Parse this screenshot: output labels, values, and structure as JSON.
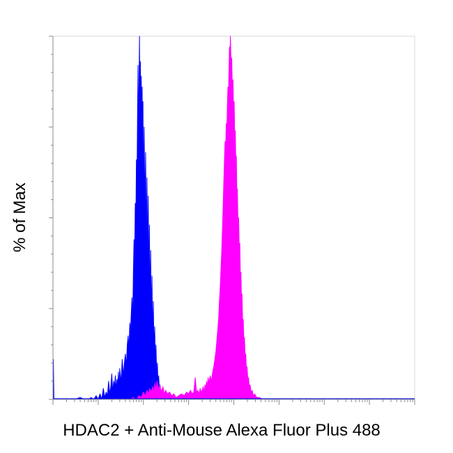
{
  "chart_data": {
    "type": "area",
    "title": "",
    "xlabel": "HDAC2 + Anti-Mouse Alexa Fluor Plus 488",
    "ylabel": "% of Max",
    "xscale": "log",
    "xlim": [
      1,
      100000000
    ],
    "ylim": [
      0,
      100
    ],
    "grid": false,
    "legend": "none",
    "series": [
      {
        "color": "#0000ff",
        "x": [
          1,
          1.02,
          1.05,
          1.1,
          1.3,
          1.6,
          2.2,
          3,
          4,
          5,
          6,
          7,
          8,
          9,
          10,
          11,
          12,
          13,
          14,
          15,
          16,
          17,
          18,
          19,
          20,
          21,
          22,
          23,
          24,
          25,
          26,
          27,
          28,
          29,
          30,
          32,
          34,
          36,
          38,
          40,
          42,
          44,
          46,
          48,
          50,
          52,
          54,
          56,
          58,
          60,
          62,
          64,
          66,
          68,
          70,
          72,
          74,
          76,
          78,
          80,
          82,
          84,
          86,
          88,
          90,
          92,
          94,
          96,
          98,
          100,
          104,
          108,
          112,
          116,
          120,
          124,
          128,
          132,
          136,
          140,
          145,
          150,
          155,
          160,
          166,
          172,
          178,
          184,
          190,
          197,
          204,
          211,
          218,
          226,
          234,
          242,
          250,
          260,
          270,
          280,
          290,
          300,
          315,
          330,
          345,
          360,
          380,
          400,
          420,
          440,
          470,
          500,
          540,
          580,
          640,
          720,
          800,
          1000,
          1500,
          3000,
          10000,
          100000,
          100000000
        ],
        "values": [
          0,
          11,
          0,
          0,
          0,
          0,
          0,
          0,
          0.5,
          0,
          0,
          0.5,
          0,
          1,
          0,
          1.5,
          0,
          3,
          0.5,
          2,
          1,
          5,
          1.5,
          3.5,
          7,
          2,
          5,
          3.5,
          6.5,
          2.5,
          5.5,
          4,
          7.5,
          3,
          8.5,
          4.5,
          11,
          6.5,
          10,
          12.5,
          9,
          15,
          17.5,
          13.5,
          21,
          18.5,
          24,
          28,
          21,
          35,
          44,
          38,
          54,
          48,
          66,
          58,
          77,
          92,
          72,
          86,
          100,
          79,
          93,
          71,
          89,
          63,
          86,
          62,
          82,
          56,
          75,
          52,
          68,
          44,
          61,
          38,
          56,
          30,
          48,
          26,
          41,
          21,
          34,
          17,
          27,
          13,
          20,
          9.5,
          15,
          6.5,
          10,
          4,
          6.5,
          2.5,
          4,
          1.5,
          2.5,
          1,
          1.5,
          0.5,
          1,
          0.5,
          0.5,
          0,
          0.5,
          0,
          0,
          0.5,
          0,
          0,
          0,
          0,
          0,
          0,
          0,
          0,
          0,
          0.5,
          0,
          0,
          0,
          0,
          0
        ]
      },
      {
        "color": "#ff00ff",
        "x": [
          1,
          50,
          60,
          70,
          80,
          90,
          100,
          110,
          120,
          130,
          140,
          150,
          160,
          170,
          180,
          190,
          200,
          215,
          230,
          250,
          270,
          290,
          310,
          340,
          380,
          420,
          470,
          530,
          600,
          700,
          800,
          900,
          1000,
          1100,
          1200,
          1300,
          1400,
          1500,
          1600,
          1700,
          1800,
          1900,
          2000,
          2100,
          2200,
          2300,
          2400,
          2500,
          2600,
          2700,
          2800,
          3000,
          3200,
          3400,
          3600,
          3800,
          4000,
          4200,
          4400,
          4600,
          4800,
          5000,
          5200,
          5400,
          5600,
          5800,
          6000,
          6200,
          6400,
          6600,
          6800,
          7000,
          7200,
          7400,
          7600,
          7800,
          8000,
          8200,
          8400,
          8600,
          8800,
          9000,
          9300,
          9600,
          9900,
          10200,
          10500,
          10800,
          11100,
          11400,
          11700,
          12000,
          12400,
          12800,
          13200,
          13600,
          14000,
          14400,
          14800,
          15200,
          15700,
          16200,
          16700,
          17200,
          17800,
          18400,
          19000,
          19700,
          20400,
          21200,
          22000,
          23000,
          24000,
          25500,
          27000,
          29000,
          32000,
          36000,
          45000,
          100000000
        ],
        "values": [
          0,
          0,
          0.5,
          0,
          1,
          0.5,
          2,
          1,
          2.5,
          1.5,
          3,
          2,
          3.5,
          2,
          4.5,
          2.5,
          5,
          2.5,
          4,
          2,
          3.5,
          1.5,
          2.5,
          1.5,
          2,
          1,
          1.5,
          0.5,
          1,
          1.5,
          1,
          2,
          1.5,
          2.5,
          1.5,
          2,
          6,
          2,
          2.5,
          1.5,
          3,
          2,
          2.5,
          3.5,
          2,
          4,
          3,
          5,
          3.5,
          6,
          4.5,
          6.5,
          5,
          7.5,
          9,
          11,
          13,
          16,
          19,
          22,
          27,
          31,
          36,
          41,
          47,
          53,
          60,
          66,
          71,
          69,
          76,
          73,
          81,
          86,
          83,
          90,
          97,
          94,
          100,
          95,
          91,
          94,
          85,
          88,
          79,
          82,
          71,
          74,
          64,
          67,
          56,
          58,
          48,
          50,
          41,
          43,
          33,
          35,
          27,
          29,
          21,
          22,
          16,
          17,
          12,
          12.5,
          8,
          9,
          5.5,
          6,
          3.5,
          4,
          2,
          2.5,
          1,
          1.5,
          0.5,
          0.5,
          0,
          0
        ]
      }
    ]
  }
}
